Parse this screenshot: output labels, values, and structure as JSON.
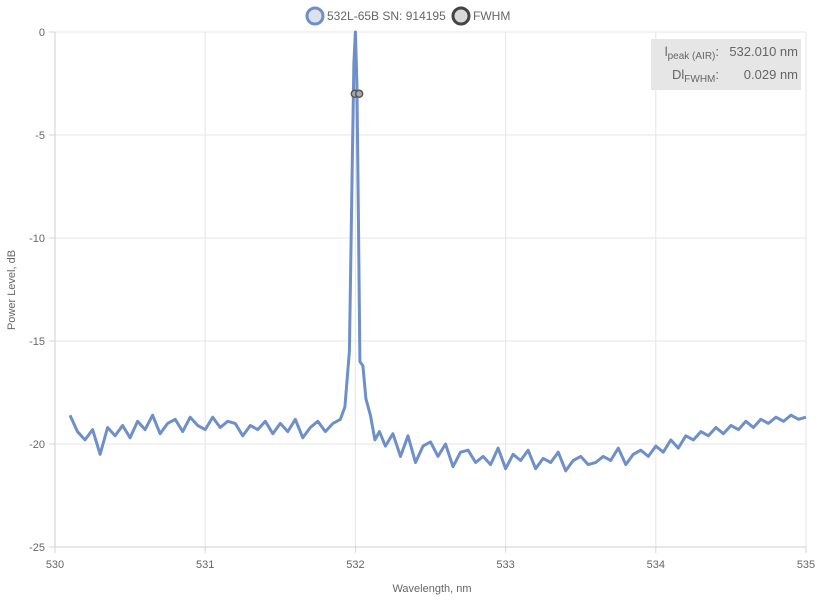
{
  "chart_data": {
    "type": "line",
    "xlabel": "Wavelength, nm",
    "ylabel": "Power Level, dB",
    "xlim": [
      530,
      535
    ],
    "ylim": [
      -25,
      0
    ],
    "xticks": [
      "530",
      "531",
      "532",
      "533",
      "534",
      "535"
    ],
    "yticks": [
      "0",
      "-5",
      "-10",
      "-15",
      "-20",
      "-25"
    ],
    "grid": true,
    "legend_position": "top-center",
    "series": [
      {
        "name": "532L-65B SN: 914195",
        "color": "#6f8fc9",
        "x": [
          530.1,
          530.15,
          530.2,
          530.25,
          530.3,
          530.35,
          530.4,
          530.45,
          530.5,
          530.55,
          530.6,
          530.65,
          530.7,
          530.75,
          530.8,
          530.85,
          530.9,
          530.95,
          531.0,
          531.05,
          531.1,
          531.15,
          531.2,
          531.25,
          531.3,
          531.35,
          531.4,
          531.45,
          531.5,
          531.55,
          531.6,
          531.65,
          531.7,
          531.75,
          531.8,
          531.85,
          531.9,
          531.93,
          531.96,
          531.98,
          531.99,
          532.0,
          532.01,
          532.02,
          532.03,
          532.05,
          532.07,
          532.1,
          532.13,
          532.16,
          532.2,
          532.25,
          532.3,
          532.35,
          532.4,
          532.45,
          532.5,
          532.55,
          532.6,
          532.65,
          532.7,
          532.75,
          532.8,
          532.85,
          532.9,
          532.95,
          533.0,
          533.05,
          533.1,
          533.15,
          533.2,
          533.25,
          533.3,
          533.35,
          533.4,
          533.45,
          533.5,
          533.55,
          533.6,
          533.65,
          533.7,
          533.75,
          533.8,
          533.85,
          533.9,
          533.95,
          534.0,
          534.05,
          534.1,
          534.15,
          534.2,
          534.25,
          534.3,
          534.35,
          534.4,
          534.45,
          534.5,
          534.55,
          534.6,
          534.65,
          534.7,
          534.75,
          534.8,
          534.85,
          534.9,
          534.95,
          535.0
        ],
        "y": [
          -18.6,
          -19.4,
          -19.8,
          -19.3,
          -20.5,
          -19.2,
          -19.6,
          -19.1,
          -19.7,
          -18.9,
          -19.3,
          -18.6,
          -19.5,
          -19.0,
          -18.8,
          -19.4,
          -18.7,
          -19.1,
          -19.3,
          -18.7,
          -19.2,
          -18.9,
          -19.0,
          -19.6,
          -19.1,
          -19.3,
          -18.9,
          -19.5,
          -19.0,
          -19.4,
          -18.8,
          -19.7,
          -19.2,
          -18.9,
          -19.4,
          -19.0,
          -18.8,
          -18.2,
          -15.5,
          -6.0,
          -1.5,
          0.0,
          -2.5,
          -9.0,
          -16.0,
          -16.2,
          -17.8,
          -18.6,
          -19.8,
          -19.4,
          -20.1,
          -19.5,
          -20.6,
          -19.6,
          -20.9,
          -20.1,
          -19.9,
          -20.6,
          -20.0,
          -21.1,
          -20.4,
          -20.3,
          -20.9,
          -20.6,
          -21.0,
          -20.2,
          -21.2,
          -20.5,
          -20.8,
          -20.3,
          -21.2,
          -20.7,
          -20.9,
          -20.4,
          -21.3,
          -20.8,
          -20.6,
          -21.0,
          -20.9,
          -20.6,
          -20.8,
          -20.2,
          -21.0,
          -20.5,
          -20.3,
          -20.6,
          -20.1,
          -20.4,
          -19.8,
          -20.2,
          -19.6,
          -19.8,
          -19.4,
          -19.6,
          -19.2,
          -19.5,
          -19.1,
          -19.3,
          -18.9,
          -19.2,
          -18.8,
          -19.0,
          -18.7,
          -18.9,
          -18.6,
          -18.8,
          -18.7
        ]
      },
      {
        "name": "FWHM",
        "color": "#555555",
        "x": [
          531.996,
          532.025
        ],
        "y": [
          -3.0,
          -3.0
        ]
      }
    ],
    "info_box": {
      "peak_label": "l",
      "peak_sub": "peak (AIR)",
      "peak_value": "532.010 nm",
      "fwhm_label": "Dl",
      "fwhm_sub": "FWHM",
      "fwhm_value": "0.029 nm"
    }
  }
}
